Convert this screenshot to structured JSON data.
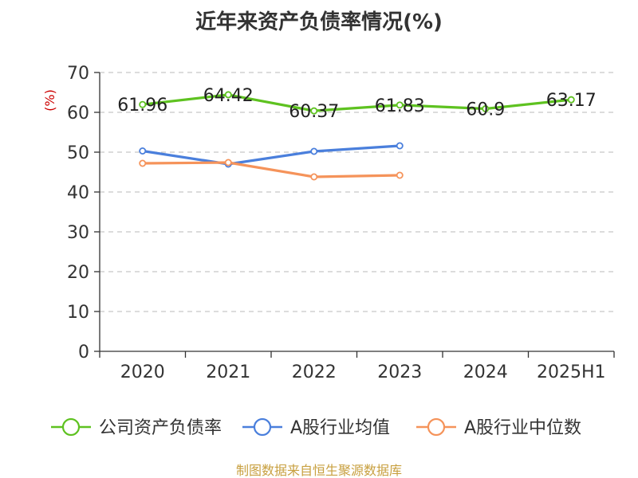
{
  "chart_data": {
    "type": "line",
    "title": "近年来资产负债率情况(%)",
    "ylabel": "(%)",
    "xlabel": "",
    "categories": [
      "2020",
      "2021",
      "2022",
      "2023",
      "2024",
      "2025H1"
    ],
    "ylim": [
      0,
      70
    ],
    "yticks": [
      0,
      10,
      20,
      30,
      40,
      50,
      60,
      70
    ],
    "grid": true,
    "legend_position": "bottom",
    "series": [
      {
        "name": "公司资产负债率",
        "color": "#5ec220",
        "values": [
          61.96,
          64.42,
          60.37,
          61.83,
          60.9,
          63.17
        ],
        "labels": [
          "61.96",
          "64.42",
          "60.37",
          "61.83",
          "60.9",
          "63.17"
        ]
      },
      {
        "name": "A股行业均值",
        "color": "#4a7fdc",
        "values": [
          50.3,
          47.0,
          50.2,
          51.6,
          null,
          null
        ]
      },
      {
        "name": "A股行业中位数",
        "color": "#f5935a",
        "values": [
          47.2,
          47.4,
          43.8,
          44.2,
          null,
          null
        ]
      }
    ]
  },
  "source_text": "制图数据来自恒生聚源数据库"
}
